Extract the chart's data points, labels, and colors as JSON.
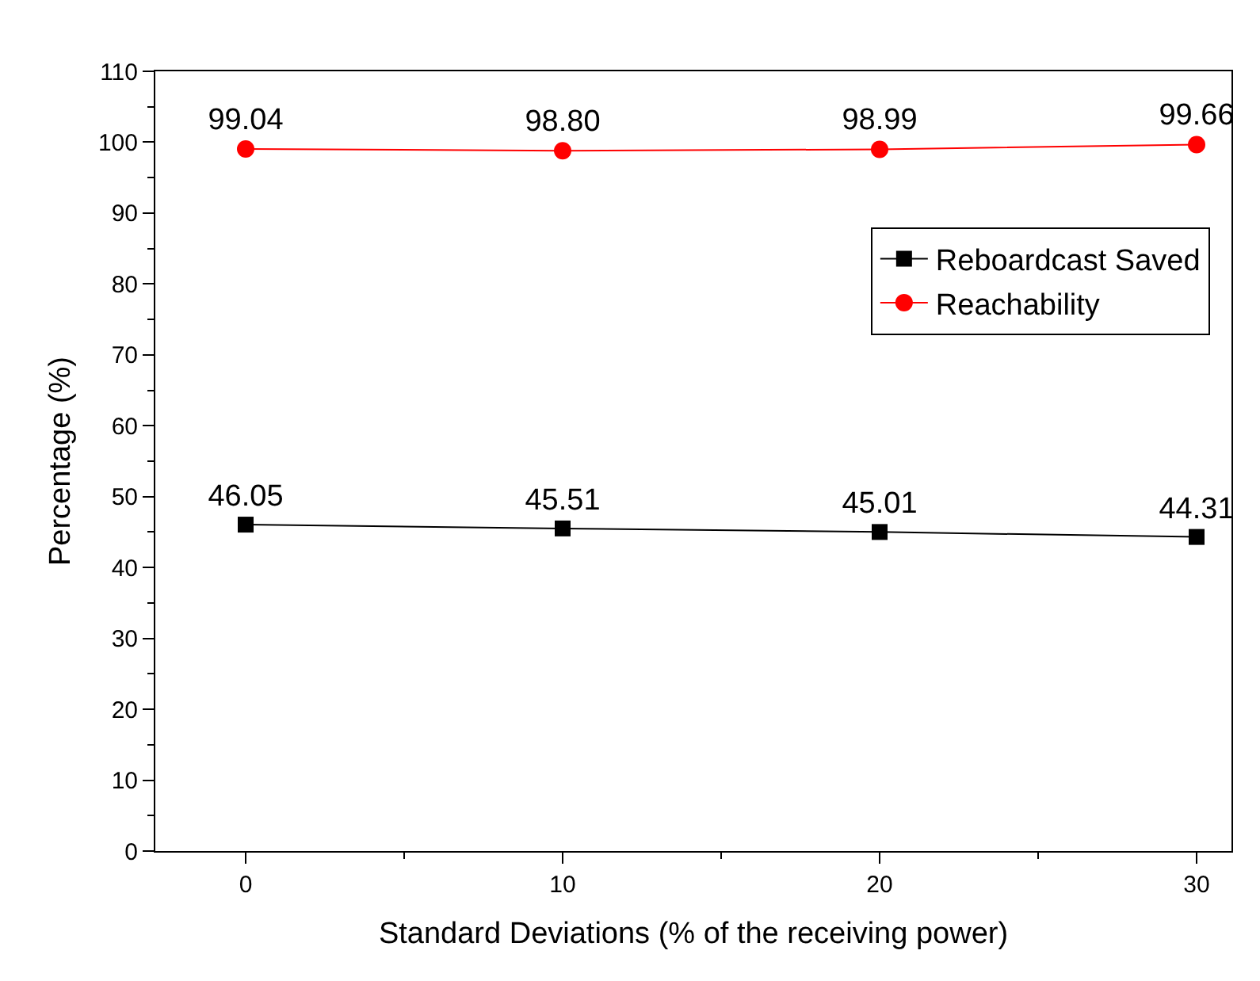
{
  "chart_data": {
    "type": "line",
    "xlabel": "Standard Deviations (% of the receiving power)",
    "ylabel": "Percentage (%)",
    "x": [
      0,
      10,
      20,
      30
    ],
    "series": [
      {
        "name": "Reboardcast Saved",
        "color": "#000000",
        "marker": "square",
        "values": [
          46.05,
          45.51,
          45.01,
          44.31
        ],
        "value_labels": [
          "46.05",
          "45.51",
          "45.01",
          "44.31"
        ]
      },
      {
        "name": "Reachability",
        "color": "#ff0000",
        "marker": "circle",
        "values": [
          99.04,
          98.8,
          98.99,
          99.66
        ],
        "value_labels": [
          "99.04",
          "98.80",
          "98.99",
          "99.66"
        ]
      }
    ],
    "xlim": [
      -2.85,
      31.1
    ],
    "xticks": [
      0,
      10,
      20,
      30
    ],
    "ylim": [
      0,
      110
    ],
    "yticks": [
      0,
      10,
      20,
      30,
      40,
      50,
      60,
      70,
      80,
      90,
      100,
      110
    ],
    "legend": "top right",
    "line_style": "solid"
  }
}
